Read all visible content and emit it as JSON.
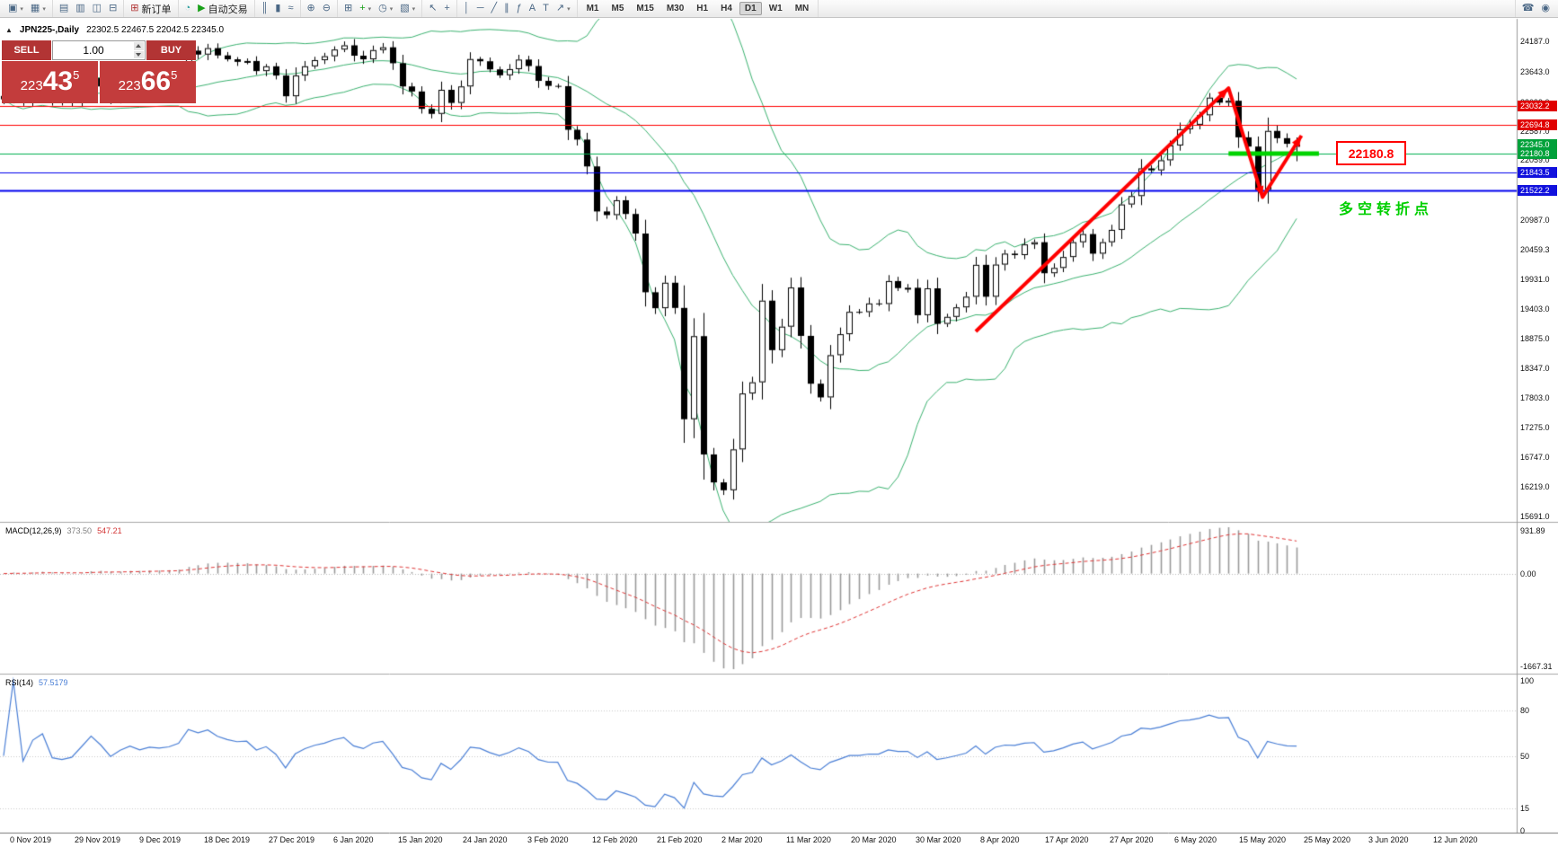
{
  "ui_glyphs": {
    "collapse": "▲",
    "caret": "▾"
  },
  "colors": {
    "bollinger": "#3cb371",
    "macd_bar": "#9a9a9a",
    "macd_signal": "#e03535",
    "rsi_line": "#4a7fd6",
    "line_colors": {
      "red": "#ff0000",
      "blue": "#0000ee",
      "green": "#00b050"
    },
    "badge_colors": {
      "red": "#e00000",
      "blue": "#1111dd",
      "green": "#00a13a"
    },
    "panel_red": "#c33c3c",
    "button_red": "#b23434"
  },
  "toolbar": {
    "groups": [
      {
        "name": "file",
        "items": [
          {
            "name": "new-chart-button",
            "icon": "chart-window-icon",
            "glyph": "▣",
            "caret": true
          },
          {
            "name": "profiles-button",
            "icon": "profiles-icon",
            "glyph": "▦",
            "caret": true
          }
        ]
      },
      {
        "name": "panels",
        "items": [
          {
            "name": "market-watch-button",
            "icon": "market-watch-icon",
            "glyph": "▤"
          },
          {
            "name": "data-window-button",
            "icon": "data-window-icon",
            "glyph": "▥"
          },
          {
            "name": "navigator-button",
            "icon": "navigator-icon",
            "glyph": "◫"
          },
          {
            "name": "terminal-button",
            "icon": "terminal-icon",
            "glyph": "⊟"
          }
        ]
      },
      {
        "name": "order",
        "items": [
          {
            "name": "new-order-button",
            "icon": "new-order-icon",
            "glyph": "⊞",
            "glyph_color": "#b03030",
            "label": "新订单"
          }
        ]
      },
      {
        "name": "apps",
        "items": [
          {
            "name": "mql-community-icon-button",
            "icon": "mql-circle-icon",
            "glyph": "◔",
            "glyph_color": "#2a9d9d"
          },
          {
            "name": "autotrading-button",
            "icon": "autotrading-play-icon",
            "glyph": "▶",
            "glyph_color": "#18a018",
            "label": "自动交易"
          }
        ]
      },
      {
        "name": "chart-type",
        "items": [
          {
            "name": "bar-chart-button",
            "icon": "bar-chart-icon",
            "glyph": "║"
          },
          {
            "name": "candlestick-button",
            "icon": "candlestick-icon",
            "glyph": "▮"
          },
          {
            "name": "line-chart-button",
            "icon": "line-chart-icon",
            "glyph": "≈"
          }
        ]
      },
      {
        "name": "zoom",
        "items": [
          {
            "name": "zoom-in-button",
            "icon": "zoom-in-icon",
            "glyph": "⊕"
          },
          {
            "name": "zoom-out-button",
            "icon": "zoom-out-icon",
            "glyph": "⊖"
          }
        ]
      },
      {
        "name": "arrange",
        "items": [
          {
            "name": "tile-windows-button",
            "icon": "tile-windows-icon",
            "glyph": "⊞"
          },
          {
            "name": "indicators-button",
            "icon": "add-indicator-icon",
            "glyph": "+",
            "glyph_color": "#18a018",
            "caret": true
          },
          {
            "name": "periods-button",
            "icon": "clock-icon",
            "glyph": "◷",
            "caret": true
          },
          {
            "name": "templates-button",
            "icon": "template-icon",
            "glyph": "▧",
            "caret": true
          }
        ]
      },
      {
        "name": "cursor",
        "items": [
          {
            "name": "cursor-button",
            "icon": "cursor-arrow-icon",
            "glyph": "↖"
          },
          {
            "name": "crosshair-button",
            "icon": "crosshair-icon",
            "glyph": "+"
          }
        ]
      },
      {
        "name": "objects",
        "items": [
          {
            "name": "vertical-line-button",
            "icon": "vertical-line-icon",
            "glyph": "│"
          },
          {
            "name": "horizontal-line-button",
            "icon": "horizontal-line-icon",
            "glyph": "─"
          },
          {
            "name": "trendline-button",
            "icon": "trendline-icon",
            "glyph": "╱"
          },
          {
            "name": "channel-button",
            "icon": "channel-icon",
            "glyph": "∥"
          },
          {
            "name": "fibonacci-button",
            "icon": "fibonacci-icon",
            "glyph": "ƒ"
          },
          {
            "name": "text-button",
            "icon": "text-icon",
            "glyph": "A"
          },
          {
            "name": "label-button",
            "icon": "label-icon",
            "glyph": "T"
          },
          {
            "name": "arrows-button",
            "icon": "arrows-icon",
            "glyph": "↗",
            "caret": true
          }
        ]
      },
      {
        "name": "timeframes",
        "type": "tf"
      }
    ],
    "timeframes": [
      "M1",
      "M5",
      "M15",
      "M30",
      "H1",
      "H4",
      "D1",
      "W1",
      "MN"
    ],
    "active_timeframe": "D1",
    "right_items": [
      {
        "name": "support-button",
        "icon": "support-phone-icon",
        "glyph": "☎"
      },
      {
        "name": "community-button",
        "icon": "community-icon",
        "glyph": "◉"
      }
    ]
  },
  "chart_header": {
    "title": "JPN225-,Daily",
    "ohlc": "22302.5 22467.5 22042.5 22345.0"
  },
  "trade_panel": {
    "sell_label": "SELL",
    "buy_label": "BUY",
    "volume": "1.00",
    "sell_price": "22343.5",
    "buy_price": "22366.5",
    "sell_lead": "223",
    "sell_big": "43",
    "sell_sup": "5",
    "buy_lead": "223",
    "buy_big": "66",
    "buy_sup": "5"
  },
  "chart_data": {
    "type": "candlestick",
    "symbol": "JPN225-",
    "timeframe": "Daily",
    "current_ohlc": {
      "open": 22302.5,
      "high": 22467.5,
      "low": 22042.5,
      "close": 22345.0
    },
    "current_price_label": "22345.0",
    "closes": [
      23150,
      23380,
      23115,
      23290,
      23370,
      23125,
      23100,
      23130,
      23295,
      23530,
      23380,
      23135,
      23300,
      23430,
      23330,
      23410,
      23390,
      23425,
      23525,
      24020,
      23950,
      24065,
      23935,
      23865,
      23820,
      23835,
      23655,
      23740,
      23575,
      23205,
      23575,
      23740,
      23850,
      23920,
      24040,
      24115,
      23930,
      23865,
      24030,
      24080,
      23795,
      23380,
      23290,
      22980,
      22890,
      23320,
      23085,
      23380,
      23870,
      23830,
      23685,
      23580,
      23690,
      23860,
      23745,
      23480,
      23390,
      23385,
      22605,
      22430,
      21950,
      21145,
      21080,
      21345,
      21100,
      20750,
      19700,
      19415,
      19870,
      19420,
      17430,
      18915,
      16800,
      16300,
      16160,
      16890,
      17890,
      18090,
      19550,
      18665,
      19085,
      19785,
      18920,
      18065,
      17820,
      18575,
      18950,
      19350,
      19345,
      19500,
      19490,
      19900,
      19775,
      19780,
      19290,
      19770,
      19135,
      19260,
      19430,
      19620,
      20190,
      19620,
      20195,
      20390,
      20365,
      20555,
      20595,
      20040,
      20135,
      20330,
      20595,
      20740,
      20390,
      20595,
      20815,
      21270,
      21420,
      21915,
      21880,
      22060,
      22325,
      22615,
      22695,
      22865,
      23180,
      23090,
      23125,
      22470,
      22305,
      21530,
      22585,
      22455,
      22355,
      22345
    ],
    "y_ticks": [
      "24187.0",
      "23643.0",
      "23099.0",
      "22587.0",
      "22059.0",
      "21531.0",
      "20987.0",
      "20459.3",
      "19931.0",
      "19403.0",
      "18875.0",
      "18347.0",
      "17803.0",
      "17275.0",
      "16747.0",
      "16219.0",
      "15691.0"
    ],
    "x_labels": [
      "0 Nov 2019",
      "29 Nov 2019",
      "9 Dec 2019",
      "18 Dec 2019",
      "27 Dec 2019",
      "6 Jan 2020",
      "15 Jan 2020",
      "24 Jan 2020",
      "3 Feb 2020",
      "12 Feb 2020",
      "21 Feb 2020",
      "2 Mar 2020",
      "11 Mar 2020",
      "20 Mar 2020",
      "30 Mar 2020",
      "8 Apr 2020",
      "17 Apr 2020",
      "27 Apr 2020",
      "6 May 2020",
      "15 May 2020",
      "25 May 2020",
      "3 Jun 2020",
      "12 Jun 2020"
    ],
    "hlines": [
      {
        "price": 23032.2,
        "label": "23032.2",
        "color": "red",
        "width": 1
      },
      {
        "price": 22694.8,
        "label": "22694.8",
        "color": "red",
        "width": 1
      },
      {
        "price": 22180.8,
        "label": "22180.8",
        "color": "green",
        "width": 1
      },
      {
        "price": 21843.5,
        "label": "21843.5",
        "color": "blue",
        "width": 1
      },
      {
        "price": 21522.2,
        "label": "21522.2",
        "color": "blue",
        "width": 2
      }
    ],
    "green_segment": {
      "from_index": 126,
      "to_index": 135.3,
      "price": 22180.8,
      "color": "#00d300",
      "width": 5
    },
    "zigzag": {
      "color": "#ff0000",
      "width": 4,
      "points": [
        [
          100,
          19000
        ],
        [
          126,
          23350
        ],
        [
          129.5,
          21400
        ],
        [
          133.5,
          22500
        ]
      ],
      "arrow_at": [
        1,
        2,
        3
      ]
    },
    "annotations": {
      "price_box": {
        "text": "22180.8"
      },
      "turning_point": {
        "text": "多空转折点"
      }
    },
    "bollinger": {
      "period": 20,
      "deviation": 2
    },
    "macd": {
      "name": "MACD(12,26,9)",
      "main_value": "373.50",
      "signal_value": "547.21",
      "axis_labels": [
        "931.89",
        "0.00",
        "-1667.31"
      ],
      "fast": 12,
      "slow": 26,
      "signal": 9
    },
    "rsi": {
      "name": "RSI(14)",
      "value": "57.5179",
      "axis_labels": [
        "100",
        "80",
        "50",
        "15",
        "0"
      ],
      "levels": [
        80,
        50,
        15
      ],
      "period": 14
    }
  }
}
